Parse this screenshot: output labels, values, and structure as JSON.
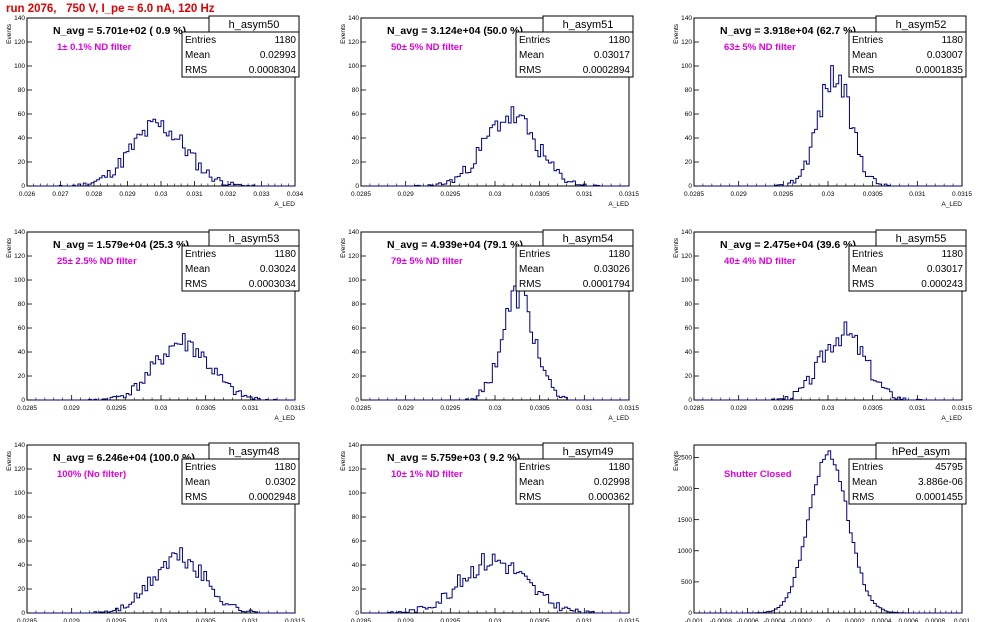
{
  "header": {
    "title": "run 2076,   750 V, I_pe ≈ 6.0 nA, 120 Hz"
  },
  "axes": {
    "y_title": "Events",
    "x_title": "A_LED"
  },
  "chart_data": [
    {
      "type": "bar",
      "name": "h_asym50",
      "n_avg_label": "N_avg = 5.701e+02 ( 0.9 %)",
      "filter_label": "1± 0.1% ND filter",
      "stats": {
        "entries": "1180",
        "mean": "0.02993",
        "rms": "0.0008304"
      },
      "xlim": [
        0.026,
        0.034
      ],
      "ylim": [
        0,
        140
      ],
      "xticks": [
        "0.026",
        "0.027",
        "0.028",
        "0.029",
        "0.03",
        "0.031",
        "0.032",
        "0.033",
        "0.034"
      ],
      "yticks": [
        "0",
        "20",
        "40",
        "60",
        "80",
        "100",
        "120",
        "140"
      ],
      "mu": 0.02993,
      "sigma": 0.00083,
      "peak": 50,
      "bins": 100,
      "seed": 11
    },
    {
      "type": "bar",
      "name": "h_asym51",
      "n_avg_label": "N_avg = 3.124e+04 (50.0 %)",
      "filter_label": "50± 5% ND filter",
      "stats": {
        "entries": "1180",
        "mean": "0.03017",
        "rms": "0.0002894"
      },
      "xlim": [
        0.0285,
        0.0315
      ],
      "ylim": [
        0,
        140
      ],
      "xticks": [
        "0.0285",
        "0.029",
        "0.0295",
        "0.03",
        "0.0305",
        "0.031",
        "0.0315"
      ],
      "yticks": [
        "0",
        "20",
        "40",
        "60",
        "80",
        "100",
        "120",
        "140"
      ],
      "mu": 0.03017,
      "sigma": 0.00029,
      "peak": 58,
      "bins": 100,
      "seed": 23
    },
    {
      "type": "bar",
      "name": "h_asym52",
      "n_avg_label": "N_avg = 3.918e+04 (62.7 %)",
      "filter_label": "63± 5% ND filter",
      "stats": {
        "entries": "1180",
        "mean": "0.03007",
        "rms": "0.0001835"
      },
      "xlim": [
        0.0285,
        0.0315
      ],
      "ylim": [
        0,
        140
      ],
      "xticks": [
        "0.0285",
        "0.029",
        "0.0295",
        "0.03",
        "0.0305",
        "0.031",
        "0.0315"
      ],
      "yticks": [
        "0",
        "20",
        "40",
        "60",
        "80",
        "100",
        "120",
        "140"
      ],
      "mu": 0.03007,
      "sigma": 0.000183,
      "peak": 92,
      "bins": 100,
      "seed": 37
    },
    {
      "type": "bar",
      "name": "h_asym53",
      "n_avg_label": "N_avg = 1.579e+04 (25.3 %)",
      "filter_label": "25± 2.5% ND filter",
      "stats": {
        "entries": "1180",
        "mean": "0.03024",
        "rms": "0.0003034"
      },
      "xlim": [
        0.0285,
        0.0315
      ],
      "ylim": [
        0,
        140
      ],
      "xticks": [
        "0.0285",
        "0.029",
        "0.0295",
        "0.03",
        "0.0305",
        "0.031",
        "0.0315"
      ],
      "yticks": [
        "0",
        "20",
        "40",
        "60",
        "80",
        "100",
        "120",
        "140"
      ],
      "mu": 0.03024,
      "sigma": 0.0003,
      "peak": 48,
      "bins": 100,
      "seed": 41
    },
    {
      "type": "bar",
      "name": "h_asym54",
      "n_avg_label": "N_avg = 4.939e+04 (79.1 %)",
      "filter_label": "79± 5% ND filter",
      "stats": {
        "entries": "1180",
        "mean": "0.03026",
        "rms": "0.0001794"
      },
      "xlim": [
        0.0285,
        0.0315
      ],
      "ylim": [
        0,
        140
      ],
      "xticks": [
        "0.0285",
        "0.029",
        "0.0295",
        "0.03",
        "0.0305",
        "0.031",
        "0.0315"
      ],
      "yticks": [
        "0",
        "20",
        "40",
        "60",
        "80",
        "100",
        "120",
        "140"
      ],
      "mu": 0.03026,
      "sigma": 0.000179,
      "peak": 88,
      "bins": 100,
      "seed": 53
    },
    {
      "type": "bar",
      "name": "h_asym55",
      "n_avg_label": "N_avg = 2.475e+04 (39.6 %)",
      "filter_label": "40± 4% ND filter",
      "stats": {
        "entries": "1180",
        "mean": "0.03017",
        "rms": "0.000243"
      },
      "xlim": [
        0.0285,
        0.0315
      ],
      "ylim": [
        0,
        140
      ],
      "xticks": [
        "0.0285",
        "0.029",
        "0.0295",
        "0.03",
        "0.0305",
        "0.031",
        "0.0315"
      ],
      "yticks": [
        "0",
        "20",
        "40",
        "60",
        "80",
        "100",
        "120",
        "140"
      ],
      "mu": 0.03017,
      "sigma": 0.000243,
      "peak": 56,
      "bins": 100,
      "seed": 67
    },
    {
      "type": "bar",
      "name": "h_asym48",
      "n_avg_label": "N_avg = 6.246e+04 (100.0 %)",
      "filter_label": "100% (No filter)",
      "stats": {
        "entries": "1180",
        "mean": "0.0302",
        "rms": "0.0002948"
      },
      "xlim": [
        0.0285,
        0.0315
      ],
      "ylim": [
        0,
        140
      ],
      "xticks": [
        "0.0285",
        "0.029",
        "0.0295",
        "0.03",
        "0.0305",
        "0.031",
        "0.0315"
      ],
      "yticks": [
        "0",
        "20",
        "40",
        "60",
        "80",
        "100",
        "120",
        "140"
      ],
      "mu": 0.0302,
      "sigma": 0.000295,
      "peak": 46,
      "bins": 100,
      "seed": 71
    },
    {
      "type": "bar",
      "name": "h_asym49",
      "n_avg_label": "N_avg = 5.759e+03 ( 9.2 %)",
      "filter_label": "10± 1% ND filter",
      "stats": {
        "entries": "1180",
        "mean": "0.02998",
        "rms": "0.000362"
      },
      "xlim": [
        0.0285,
        0.0315
      ],
      "ylim": [
        0,
        140
      ],
      "xticks": [
        "0.0285",
        "0.029",
        "0.0295",
        "0.03",
        "0.0305",
        "0.031",
        "0.0315"
      ],
      "yticks": [
        "0",
        "20",
        "40",
        "60",
        "80",
        "100",
        "120",
        "140"
      ],
      "mu": 0.02998,
      "sigma": 0.000362,
      "peak": 44,
      "bins": 100,
      "seed": 83
    },
    {
      "type": "bar",
      "name": "hPed_asym",
      "n_avg_label": "",
      "filter_label": "Shutter Closed",
      "stats": {
        "entries": "45795",
        "mean": "3.886e-06",
        "rms": "0.0001455"
      },
      "xlim": [
        -0.001,
        0.001
      ],
      "ylim": [
        0,
        2700
      ],
      "xticks": [
        "-0.001",
        "-0.0008",
        "-0.0006",
        "-0.0004",
        "-0.0002",
        "0",
        "0.0002",
        "0.0004",
        "0.0006",
        "0.0008",
        "0.001"
      ],
      "yticks": [
        "0",
        "500",
        "1000",
        "1500",
        "2000",
        "2500"
      ],
      "mu": 3.9e-06,
      "sigma": 0.0001455,
      "peak": 2550,
      "bins": 100,
      "seed": 97
    }
  ]
}
